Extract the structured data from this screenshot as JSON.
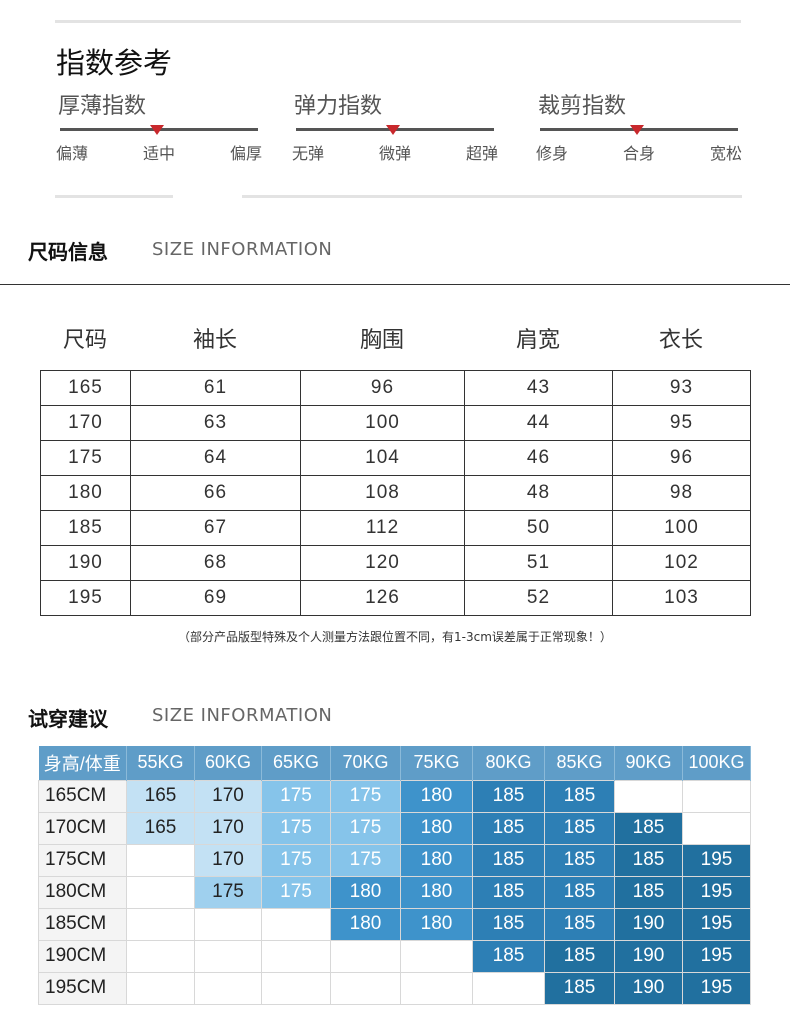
{
  "index_reference": {
    "title": "指数参考",
    "gauges": [
      {
        "title": "厚薄指数",
        "labels": [
          "偏薄",
          "适中",
          "偏厚"
        ],
        "selected": 1
      },
      {
        "title": "弹力指数",
        "labels": [
          "无弹",
          "微弹",
          "超弹"
        ],
        "selected": 1
      },
      {
        "title": "裁剪指数",
        "labels": [
          "修身",
          "合身",
          "宽松"
        ],
        "selected": 1
      }
    ],
    "marker_color": "#c8282c"
  },
  "size_info": {
    "title": "尺码信息",
    "subtitle": "SIZE INFORMATION",
    "headers": [
      "尺码",
      "袖长",
      "胸围",
      "肩宽",
      "衣长"
    ],
    "rows": [
      [
        "165",
        "61",
        "96",
        "43",
        "93"
      ],
      [
        "170",
        "63",
        "100",
        "44",
        "95"
      ],
      [
        "175",
        "64",
        "104",
        "46",
        "96"
      ],
      [
        "180",
        "66",
        "108",
        "48",
        "98"
      ],
      [
        "185",
        "67",
        "112",
        "50",
        "100"
      ],
      [
        "190",
        "68",
        "120",
        "51",
        "102"
      ],
      [
        "195",
        "69",
        "126",
        "52",
        "103"
      ]
    ],
    "note": "（部分产品版型特殊及个人测量方法跟位置不同，有1-3cm误差属于正常现象！）"
  },
  "fit_advice": {
    "title": "试穿建议",
    "subtitle": "SIZE INFORMATION",
    "corner": "身高/体重",
    "header_color": "#5f9dc8",
    "weights": [
      "55KG",
      "60KG",
      "65KG",
      "70KG",
      "75KG",
      "80KG",
      "85KG",
      "90KG",
      "100KG"
    ],
    "rows": [
      {
        "height": "165CM",
        "cells": [
          [
            "165",
            1
          ],
          [
            "170",
            1
          ],
          [
            "175",
            3
          ],
          [
            "175",
            3
          ],
          [
            "180",
            4
          ],
          [
            "185",
            5
          ],
          [
            "185",
            5
          ],
          [
            "",
            0
          ],
          [
            "",
            0
          ]
        ]
      },
      {
        "height": "170CM",
        "cells": [
          [
            "165",
            1
          ],
          [
            "170",
            1
          ],
          [
            "175",
            3
          ],
          [
            "175",
            3
          ],
          [
            "180",
            4
          ],
          [
            "185",
            5
          ],
          [
            "185",
            5
          ],
          [
            "185",
            6
          ],
          [
            "",
            0
          ]
        ]
      },
      {
        "height": "175CM",
        "cells": [
          [
            "",
            0
          ],
          [
            "170",
            1
          ],
          [
            "175",
            3
          ],
          [
            "175",
            3
          ],
          [
            "180",
            4
          ],
          [
            "185",
            5
          ],
          [
            "185",
            5
          ],
          [
            "185",
            6
          ],
          [
            "195",
            6
          ]
        ]
      },
      {
        "height": "180CM",
        "cells": [
          [
            "",
            0
          ],
          [
            "175",
            2
          ],
          [
            "175",
            3
          ],
          [
            "180",
            4
          ],
          [
            "180",
            4
          ],
          [
            "185",
            5
          ],
          [
            "185",
            5
          ],
          [
            "185",
            6
          ],
          [
            "195",
            6
          ]
        ]
      },
      {
        "height": "185CM",
        "cells": [
          [
            "",
            0
          ],
          [
            "",
            0
          ],
          [
            "",
            0
          ],
          [
            "180",
            4
          ],
          [
            "180",
            4
          ],
          [
            "185",
            5
          ],
          [
            "185",
            5
          ],
          [
            "190",
            6
          ],
          [
            "195",
            6
          ]
        ]
      },
      {
        "height": "190CM",
        "cells": [
          [
            "",
            0
          ],
          [
            "",
            0
          ],
          [
            "",
            0
          ],
          [
            "",
            0
          ],
          [
            "",
            0
          ],
          [
            "185",
            5
          ],
          [
            "185",
            6
          ],
          [
            "190",
            6
          ],
          [
            "195",
            6
          ]
        ]
      },
      {
        "height": "195CM",
        "cells": [
          [
            "",
            0
          ],
          [
            "",
            0
          ],
          [
            "",
            0
          ],
          [
            "",
            0
          ],
          [
            "",
            0
          ],
          [
            "",
            0
          ],
          [
            "185",
            6
          ],
          [
            "190",
            6
          ],
          [
            "195",
            6
          ]
        ]
      }
    ]
  }
}
